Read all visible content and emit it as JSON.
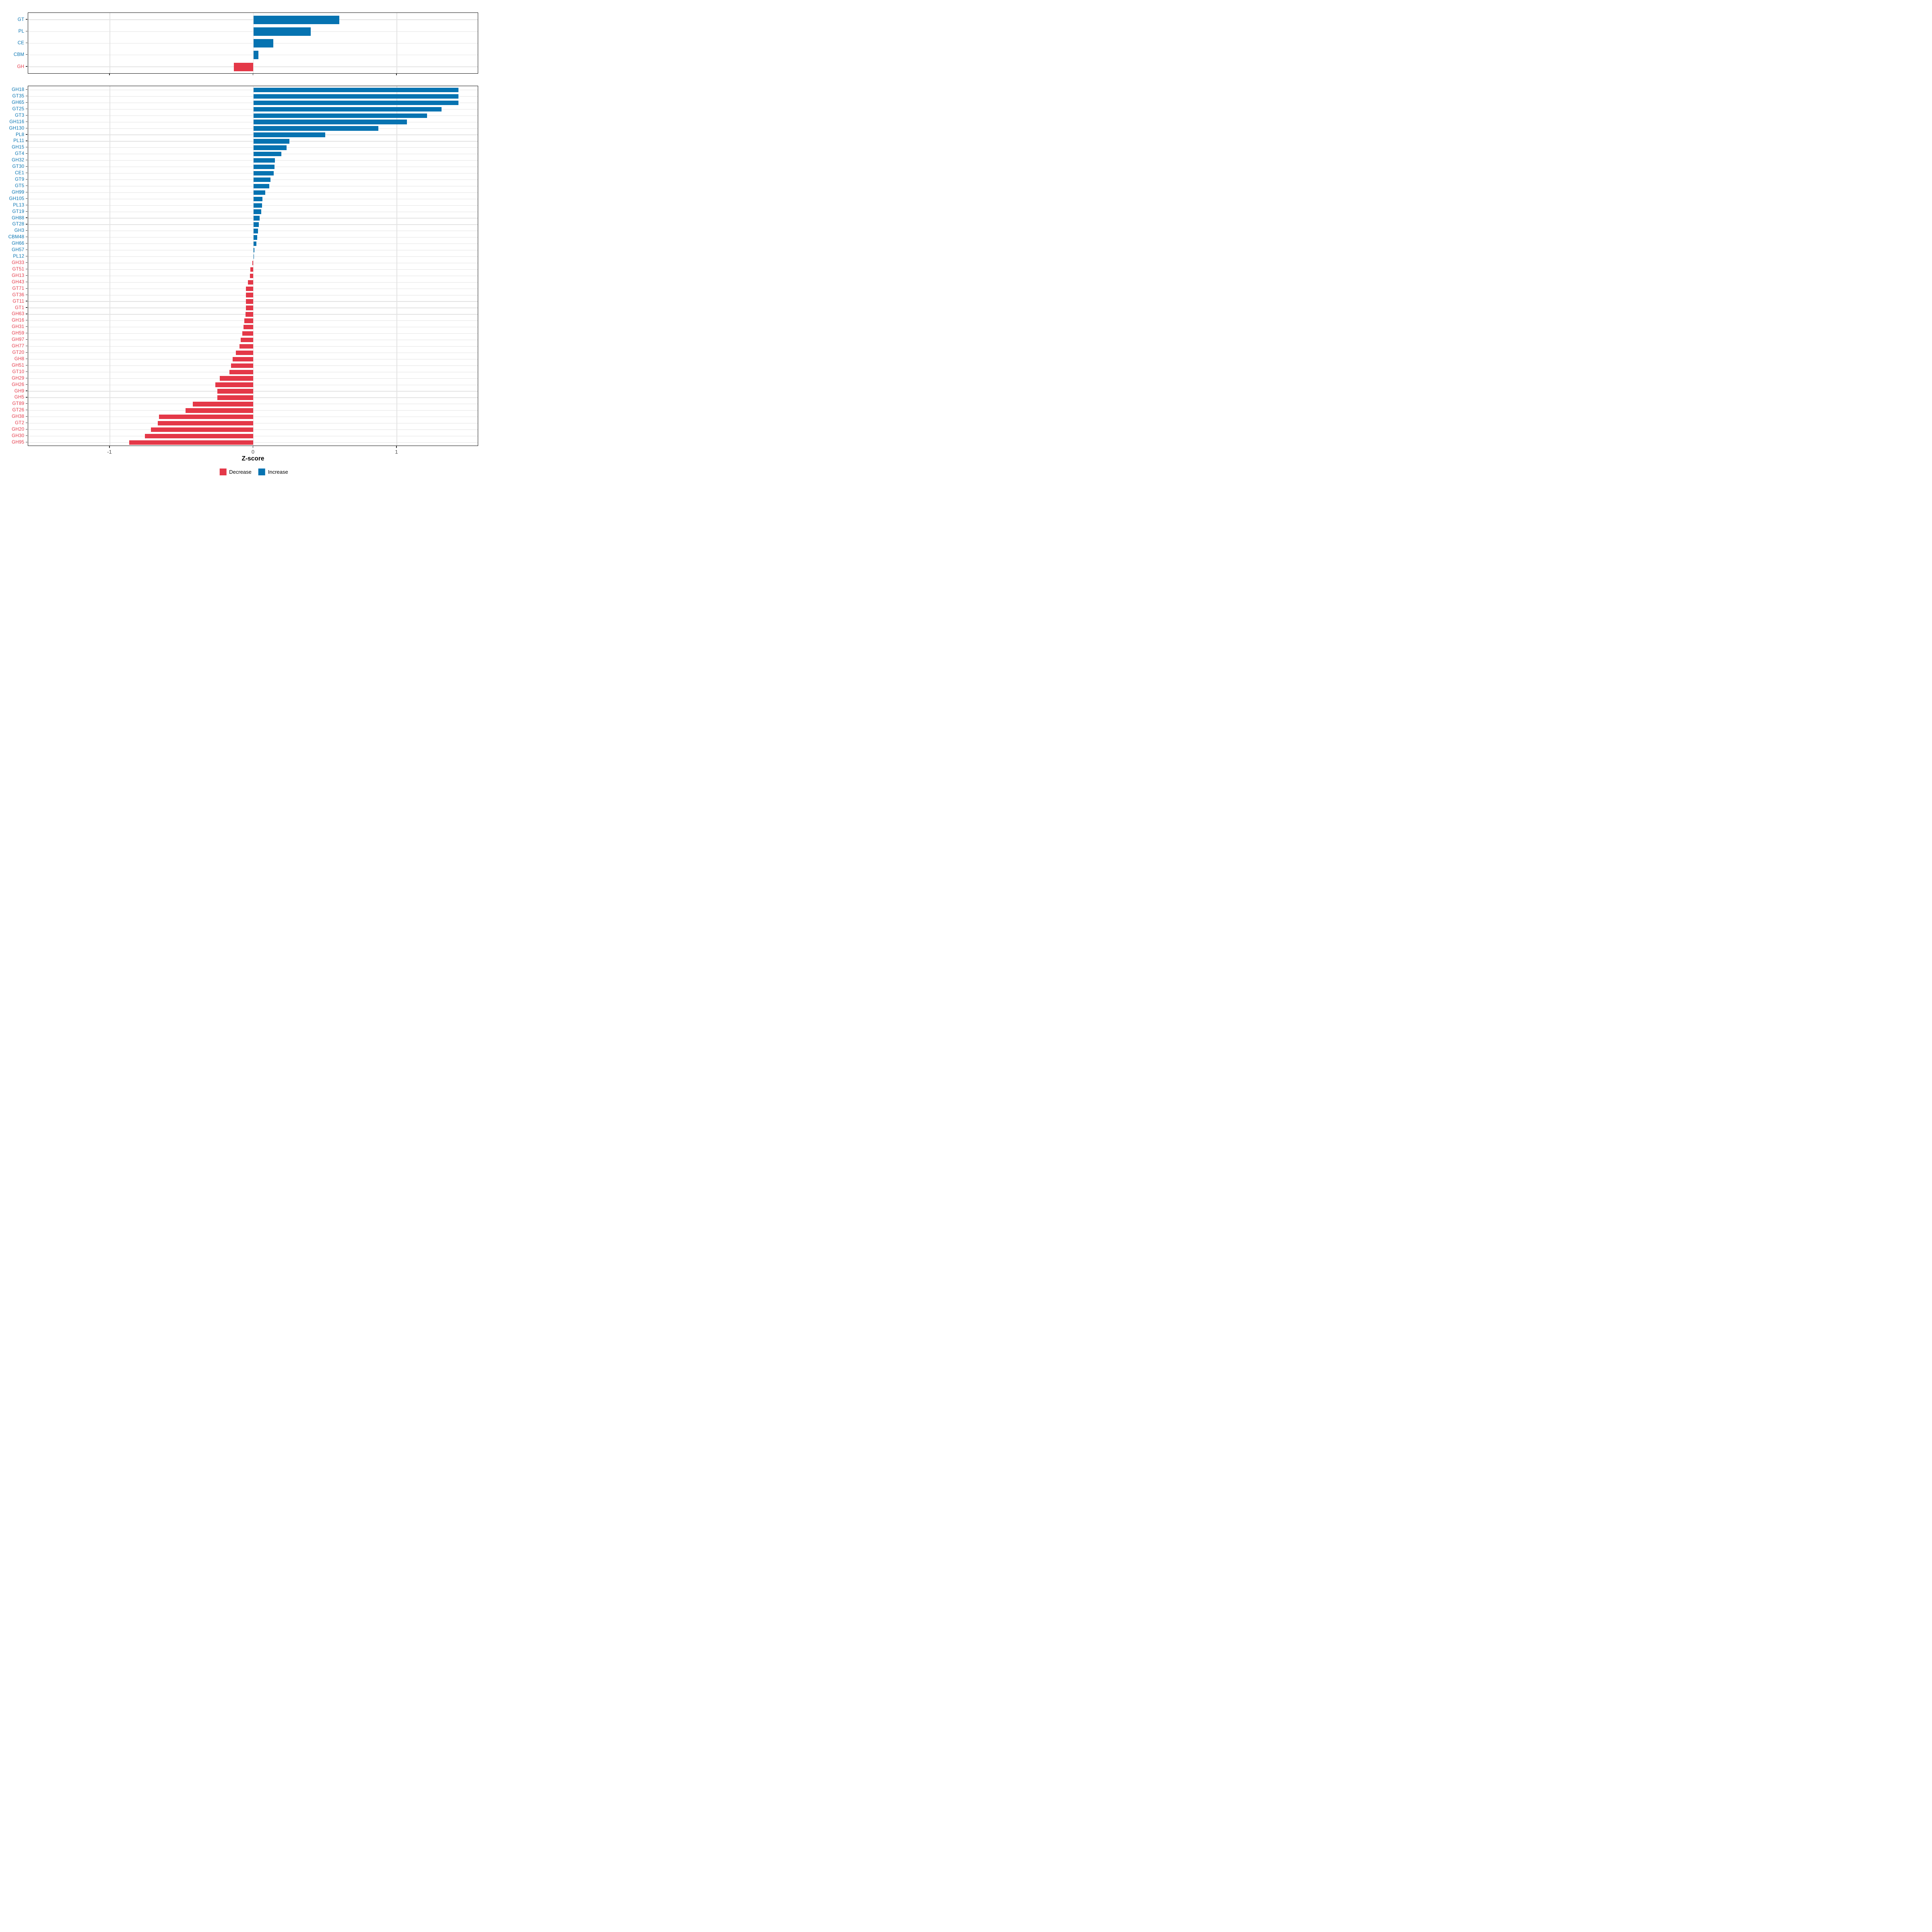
{
  "chart_data": [
    {
      "type": "bar",
      "orientation": "horizontal",
      "panel": "cazyme-classes",
      "title": "",
      "xlabel": "Z-score",
      "xlim": [
        -1.57,
        1.57
      ],
      "x_ticks": [
        -1,
        0,
        1
      ],
      "grid": true,
      "categories": [
        "GT",
        "PL",
        "CE",
        "CBM",
        "GH"
      ],
      "values": [
        0.6,
        0.4,
        0.14,
        0.035,
        -0.135
      ]
    },
    {
      "type": "bar",
      "orientation": "horizontal",
      "panel": "cazyme-families",
      "title": "",
      "xlabel": "Z-score",
      "xlim": [
        -1.57,
        1.57
      ],
      "x_ticks": [
        -1,
        0,
        1
      ],
      "grid": true,
      "categories": [
        "GH18",
        "GT35",
        "GH65",
        "GT25",
        "GT3",
        "GH116",
        "GH130",
        "PL8",
        "PL11",
        "GH15",
        "GT4",
        "GH32",
        "GT30",
        "CE1",
        "GT9",
        "GT5",
        "GH99",
        "GH105",
        "PL13",
        "GT19",
        "GH88",
        "GT28",
        "GH3",
        "CBM48",
        "GH66",
        "GH57",
        "PL12",
        "GH33",
        "GT51",
        "GH13",
        "GH43",
        "GT71",
        "GT36",
        "GT11",
        "GT1",
        "GH63",
        "GH16",
        "GH31",
        "GH59",
        "GH97",
        "GH77",
        "GT20",
        "GH8",
        "GH51",
        "GT10",
        "GH29",
        "GH26",
        "GH9",
        "GH5",
        "GT89",
        "GT26",
        "GH38",
        "GT2",
        "GH20",
        "GH30",
        "GH95"
      ],
      "values": [
        1.43,
        1.43,
        1.43,
        1.31,
        1.21,
        1.07,
        0.87,
        0.5,
        0.25,
        0.23,
        0.195,
        0.15,
        0.147,
        0.142,
        0.12,
        0.11,
        0.083,
        0.062,
        0.059,
        0.056,
        0.044,
        0.039,
        0.032,
        0.028,
        0.02,
        0.008,
        0.004,
        -0.006,
        -0.022,
        -0.024,
        -0.038,
        -0.052,
        -0.052,
        -0.053,
        -0.053,
        -0.055,
        -0.063,
        -0.069,
        -0.078,
        -0.088,
        -0.097,
        -0.121,
        -0.144,
        -0.155,
        -0.168,
        -0.235,
        -0.264,
        -0.25,
        -0.25,
        -0.421,
        -0.473,
        -0.658,
        -0.665,
        -0.715,
        -0.755,
        -0.864
      ]
    }
  ],
  "axis": {
    "xlabel": "Z-score",
    "x_tick_labels": [
      "-1",
      "0",
      "1"
    ]
  },
  "legend": {
    "items": [
      {
        "label": "Decrease",
        "color": "#E43848"
      },
      {
        "label": "Increase",
        "color": "#0673B1"
      }
    ]
  },
  "colors": {
    "increase": "#0673B1",
    "decrease": "#E43848",
    "grid": "#e3e3e3",
    "panel_border": "#141414",
    "tick_text": "#4d4d4d"
  }
}
